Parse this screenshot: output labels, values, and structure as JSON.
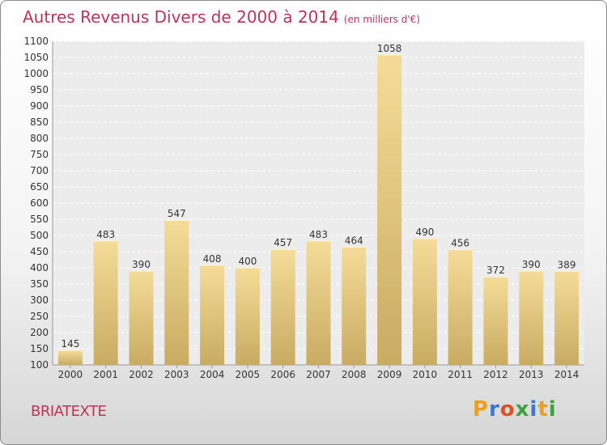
{
  "chart_data": {
    "type": "bar",
    "title": "Autres Revenus Divers de 2000 à 2014",
    "subtitle": "(en milliers d'€)",
    "categories": [
      "2000",
      "2001",
      "2002",
      "2003",
      "2004",
      "2005",
      "2006",
      "2007",
      "2008",
      "2009",
      "2010",
      "2011",
      "2012",
      "2013",
      "2014"
    ],
    "values": [
      145,
      483,
      390,
      547,
      408,
      400,
      457,
      483,
      464,
      1058,
      490,
      456,
      372,
      390,
      389
    ],
    "value_labels": [
      "145",
      "483",
      "390",
      "547",
      "408",
      "400",
      "457",
      "483",
      "464",
      "1058",
      "490",
      "456",
      "372",
      "390",
      "389"
    ],
    "ylim": [
      100,
      1100
    ],
    "yticks": [
      "100",
      "150",
      "200",
      "250",
      "300",
      "350",
      "400",
      "450",
      "500",
      "550",
      "600",
      "650",
      "700",
      "750",
      "800",
      "850",
      "900",
      "950",
      "1000",
      "1050",
      "1100"
    ],
    "grid": true,
    "legend": "none",
    "bar_color": "#e8cf85"
  },
  "commune": "BRIATEXTE",
  "logo": {
    "letters": [
      "P",
      "r",
      "o",
      "x",
      "i",
      "t",
      "i"
    ],
    "colors": [
      "#e8a020",
      "#3c78c8",
      "#e05020",
      "#40a040",
      "#3c78c8",
      "#e8a020",
      "#40a040"
    ]
  },
  "colors": {
    "accent": "#c0325a"
  }
}
